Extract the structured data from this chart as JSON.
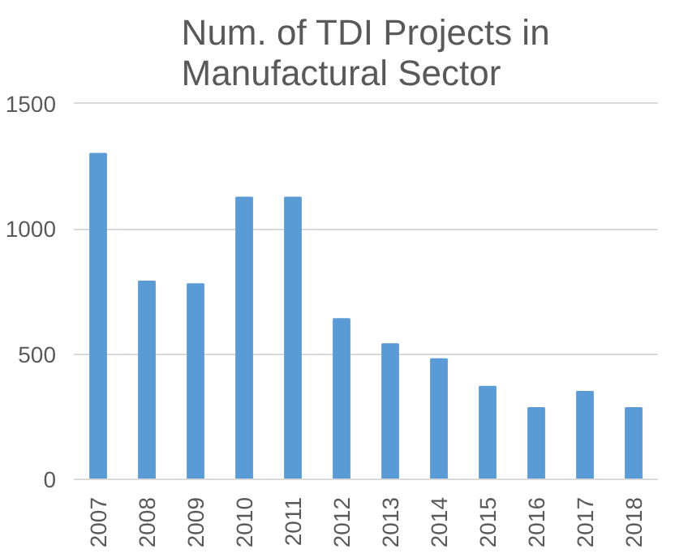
{
  "chart_data": {
    "type": "bar",
    "title": "Num. of TDI Projects in\nManufactural Sector",
    "categories": [
      "2007",
      "2008",
      "2009",
      "2010",
      "2011",
      "2012",
      "2013",
      "2014",
      "2015",
      "2016",
      "2017",
      "2018"
    ],
    "values": [
      1300,
      790,
      780,
      1125,
      1125,
      640,
      540,
      480,
      370,
      285,
      350,
      285
    ],
    "color": "#5b9bd5",
    "ylim": [
      0,
      1500
    ],
    "yticks": [
      0,
      500,
      1000,
      1500
    ],
    "grid": "y"
  }
}
